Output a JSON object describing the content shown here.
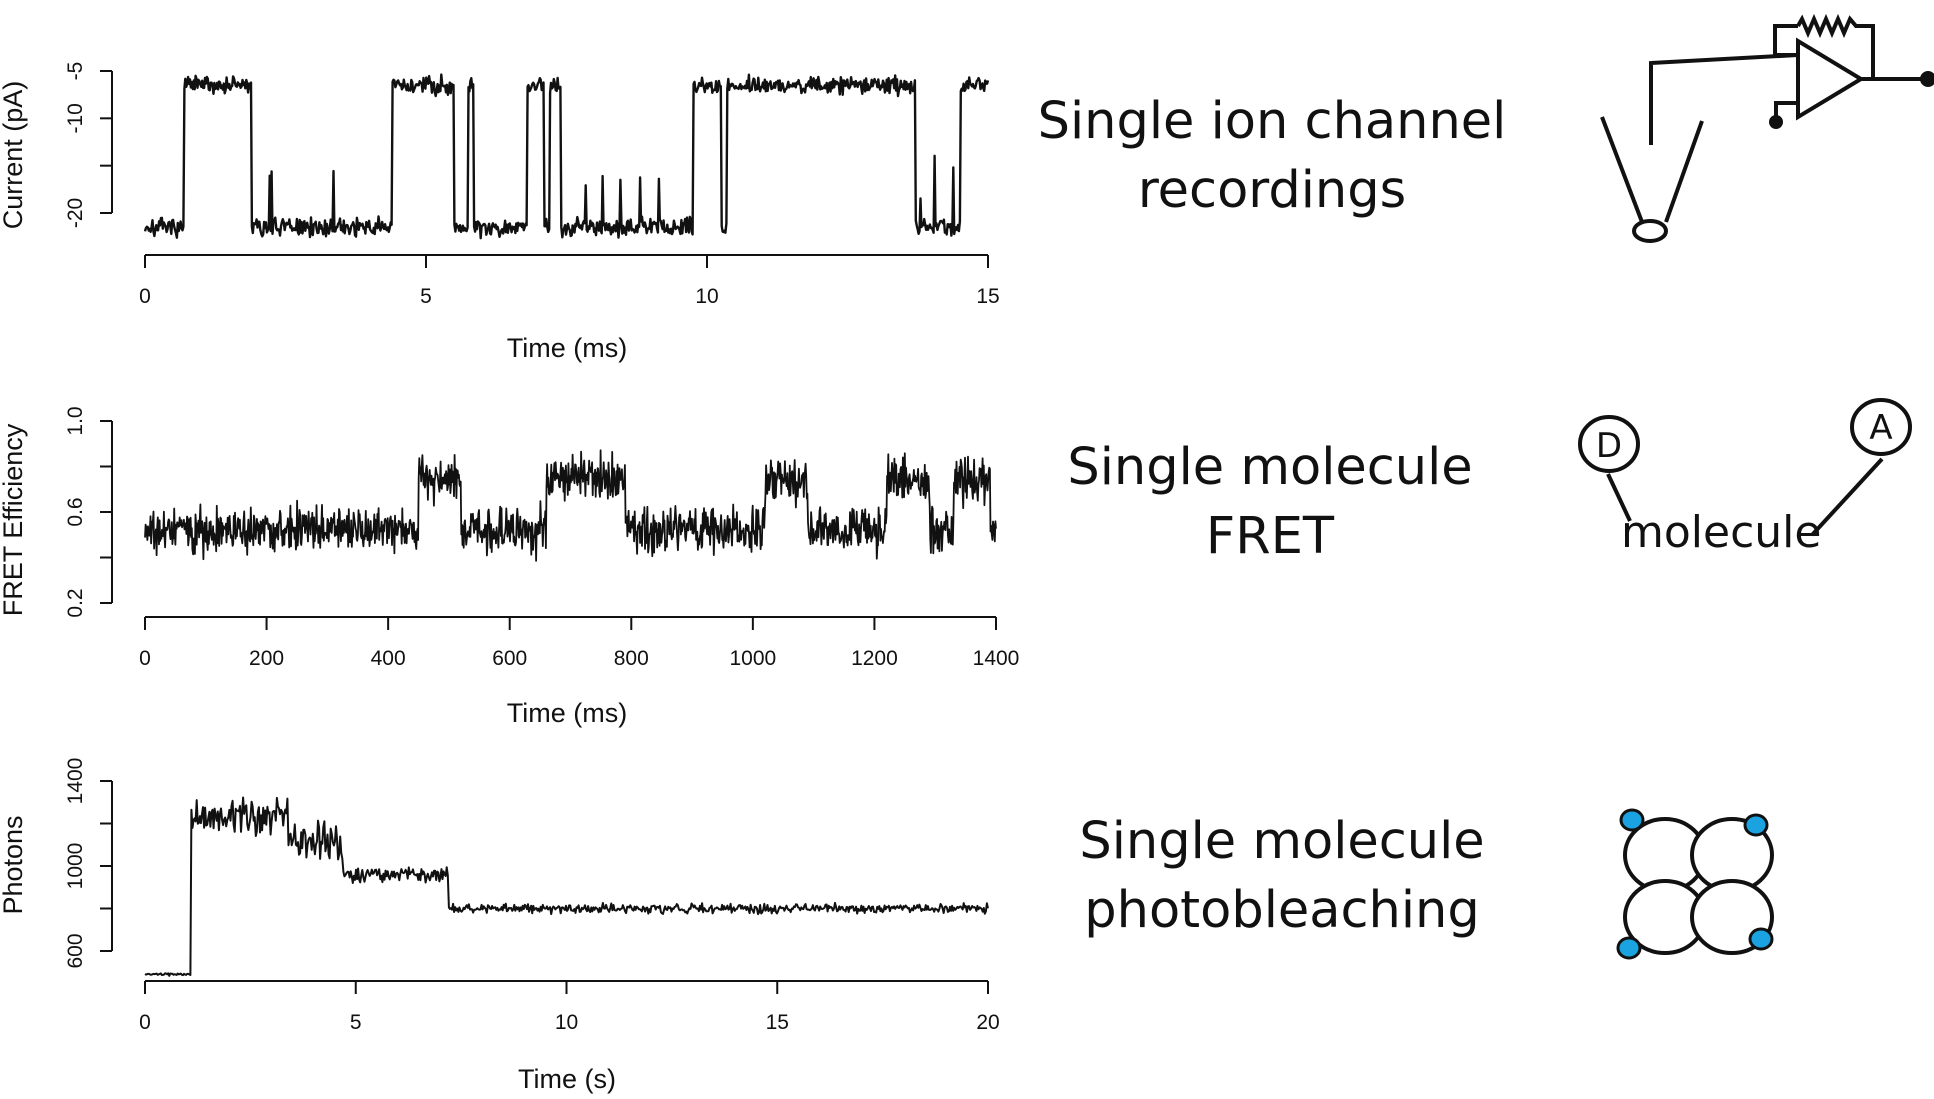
{
  "colors": {
    "ink": "#111111",
    "accent": "#1aa3e0"
  },
  "chart_data": [
    {
      "type": "line",
      "xlabel": "Time (ms)",
      "ylabel": "Current (pA)",
      "xlim": [
        0,
        15
      ],
      "ylim": [
        -22,
        -5
      ],
      "xticks": [
        "0",
        "5",
        "10",
        "15"
      ],
      "yticks": [
        "-20",
        "-10",
        "-5"
      ],
      "trace_levels": {
        "closed": -21.5,
        "open": -6.5,
        "noise": 0.8
      },
      "open_intervals": [
        [
          0.7,
          1.9
        ],
        [
          4.4,
          5.5
        ],
        [
          5.75,
          5.85
        ],
        [
          6.8,
          7.1
        ],
        [
          7.2,
          7.4
        ],
        [
          9.75,
          10.25
        ],
        [
          10.35,
          13.7
        ],
        [
          14.5,
          15
        ]
      ],
      "series": [
        {
          "values": []
        }
      ]
    },
    {
      "type": "line",
      "xlabel": "Time (ms)",
      "ylabel": "FRET Efficiency",
      "xlim": [
        0,
        1400
      ],
      "ylim": [
        0.2,
        1.0
      ],
      "xticks": [
        "0",
        "200",
        "400",
        "600",
        "800",
        "1000",
        "1200",
        "1400"
      ],
      "yticks": [
        "0.2",
        "0.6",
        "1.0"
      ],
      "trace_levels": {
        "low": 0.52,
        "high": 0.75,
        "noise": 0.08
      },
      "high_intervals": [
        [
          450,
          520
        ],
        [
          660,
          790
        ],
        [
          1020,
          1090
        ],
        [
          1220,
          1290
        ],
        [
          1330,
          1390
        ]
      ],
      "series": [
        {
          "values": []
        }
      ]
    },
    {
      "type": "line",
      "xlabel": "Time (s)",
      "ylabel": "Photons",
      "xlim": [
        0,
        20
      ],
      "ylim": [
        600,
        1400
      ],
      "xticks": [
        "0",
        "5",
        "10",
        "15",
        "20"
      ],
      "yticks": [
        "600",
        "1000",
        "1400"
      ],
      "steps": [
        {
          "from": 0,
          "to": 1.1,
          "level": 490
        },
        {
          "from": 1.1,
          "to": 3.4,
          "level": 1230
        },
        {
          "from": 3.4,
          "to": 4.7,
          "level": 1110
        },
        {
          "from": 4.7,
          "to": 7.2,
          "level": 960
        },
        {
          "from": 7.2,
          "to": 20,
          "level": 800
        }
      ],
      "series": [
        {
          "values": []
        }
      ]
    }
  ],
  "panels": {
    "ion_channel": {
      "line1": "Single ion channel",
      "line2": "recordings"
    },
    "fret": {
      "line1": "Single molecule",
      "line2": "FRET",
      "donor_label": "D",
      "acceptor_label": "A",
      "molecule_label": "molecule"
    },
    "photobleaching": {
      "line1": "Single molecule",
      "line2": "photobleaching"
    }
  }
}
